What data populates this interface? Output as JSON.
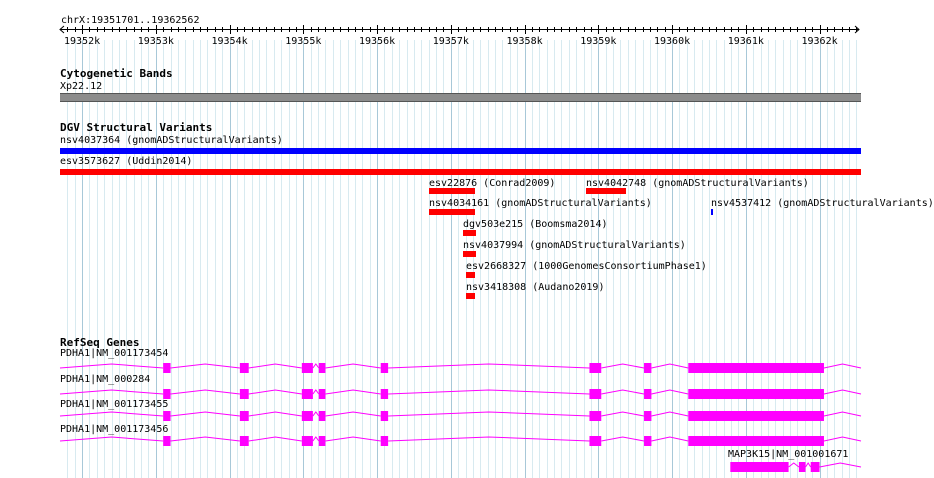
{
  "ruler": {
    "region": "chrX:19351701..19362562",
    "start": 19351701,
    "end": 19362562,
    "ticks": [
      "19352k",
      "19353k",
      "19354k",
      "19355k",
      "19356k",
      "19357k",
      "19358k",
      "19359k",
      "19360k",
      "19361k",
      "19362k"
    ]
  },
  "cytobands": {
    "title": "Cytogenetic Bands",
    "label": "Xp22.12"
  },
  "dgv": {
    "title": "DGV Structural Variants",
    "features": [
      {
        "label": "nsv4037364 (gnomADStructuralVariants)",
        "color": "#0000ff",
        "start": 19351701,
        "end": 19362562
      },
      {
        "label": "esv3573627 (Uddin2014)",
        "color": "#ff0000",
        "start": 19351701,
        "end": 19362562
      },
      {
        "label": "esv22876 (Conrad2009)",
        "color": "#ff0000",
        "start": 19356700,
        "end": 19357320
      },
      {
        "label": "nsv4042748 (gnomADStructuralVariants)",
        "color": "#ff0000",
        "start": 19358830,
        "end": 19359370
      },
      {
        "label": "nsv4034161 (gnomADStructuralVariants)",
        "color": "#ff0000",
        "start": 19356700,
        "end": 19357330
      },
      {
        "label": "nsv4537412 (gnomADStructuralVariants)",
        "color": "#0000ff",
        "start": 19360530,
        "end": 19360560
      },
      {
        "label": "dgv503e215 (Boomsma2014)",
        "color": "#ff0000",
        "start": 19357170,
        "end": 19357340
      },
      {
        "label": "nsv4037994 (gnomADStructuralVariants)",
        "color": "#ff0000",
        "start": 19357170,
        "end": 19357340
      },
      {
        "label": "esv2668327 (1000GenomesConsortiumPhase1)",
        "color": "#ff0000",
        "start": 19357200,
        "end": 19357320
      },
      {
        "label": "nsv3418308 (Audano2019)",
        "color": "#ff0000",
        "start": 19357200,
        "end": 19357320
      }
    ]
  },
  "genes": {
    "title": "RefSeq Genes",
    "color": "#ff00ff",
    "transcripts": [
      {
        "label": "PDHA1|NM_001173454",
        "start": 19351701,
        "end": 19362562,
        "exons": [
          [
            19353100,
            19353200
          ],
          [
            19354140,
            19354260
          ],
          [
            19354980,
            19355130
          ],
          [
            19355210,
            19355300
          ],
          [
            19356050,
            19356150
          ],
          [
            19358880,
            19359040
          ],
          [
            19359620,
            19359720
          ],
          [
            19360220,
            19362060
          ]
        ]
      },
      {
        "label": "PDHA1|NM_000284",
        "start": 19351701,
        "end": 19362562,
        "exons": [
          [
            19353100,
            19353200
          ],
          [
            19354140,
            19354260
          ],
          [
            19354980,
            19355130
          ],
          [
            19355210,
            19355300
          ],
          [
            19356050,
            19356150
          ],
          [
            19358880,
            19359040
          ],
          [
            19359620,
            19359720
          ],
          [
            19360220,
            19362060
          ]
        ]
      },
      {
        "label": "PDHA1|NM_001173455",
        "start": 19351701,
        "end": 19362562,
        "exons": [
          [
            19353100,
            19353200
          ],
          [
            19354140,
            19354260
          ],
          [
            19354980,
            19355130
          ],
          [
            19355210,
            19355300
          ],
          [
            19356050,
            19356150
          ],
          [
            19358880,
            19359040
          ],
          [
            19359620,
            19359720
          ],
          [
            19360220,
            19362060
          ]
        ]
      },
      {
        "label": "PDHA1|NM_001173456",
        "start": 19351701,
        "end": 19362562,
        "exons": [
          [
            19353100,
            19353200
          ],
          [
            19354140,
            19354260
          ],
          [
            19354980,
            19355130
          ],
          [
            19355210,
            19355300
          ],
          [
            19356050,
            19356150
          ],
          [
            19358880,
            19359040
          ],
          [
            19359620,
            19359720
          ],
          [
            19360220,
            19362060
          ]
        ]
      },
      {
        "label": "MAP3K15|NM_001001671",
        "start": 19360790,
        "end": 19362562,
        "exons": [
          [
            19360790,
            19361580
          ],
          [
            19361720,
            19361810
          ],
          [
            19361880,
            19362000
          ]
        ]
      }
    ]
  }
}
